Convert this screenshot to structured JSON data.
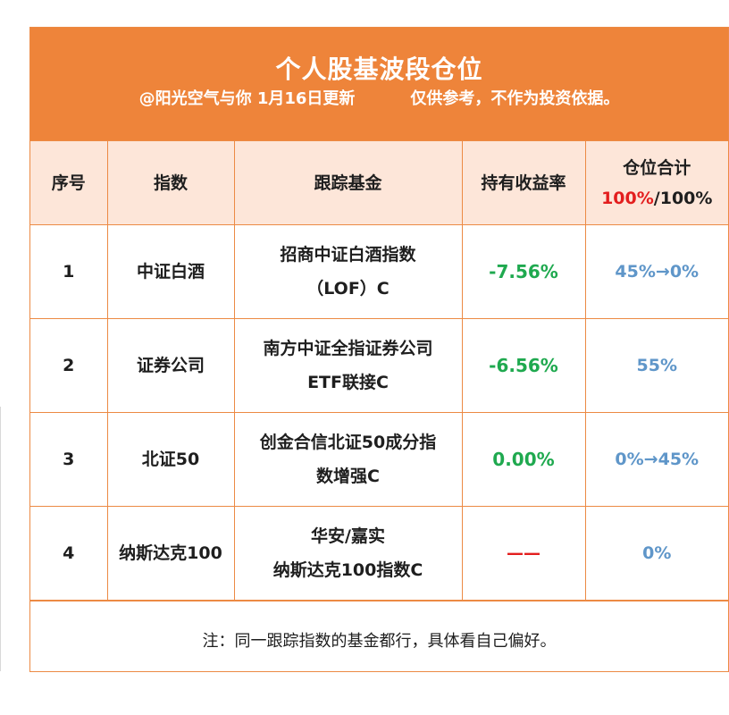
{
  "header": {
    "title": "个人股基波段仓位",
    "author_date": "@阳光空气与你 1月16日更新",
    "disclaimer": "仅供参考，不作为投资依据。"
  },
  "table": {
    "columns": {
      "no": "序号",
      "index": "指数",
      "fund": "跟踪基金",
      "return": "持有收益率",
      "position_label": "仓位合计",
      "position_current": "100%",
      "position_sep": "/",
      "position_max": "100%"
    },
    "rows": [
      {
        "no": "1",
        "index": "中证白酒",
        "fund_line1": "招商中证白酒指数",
        "fund_line2": "（LOF）C",
        "return": "-7.56%",
        "position": "45%→0%"
      },
      {
        "no": "2",
        "index": "证券公司",
        "fund_line1": "南方中证全指证券公司",
        "fund_line2": "ETF联接C",
        "return": "-6.56%",
        "position": "55%"
      },
      {
        "no": "3",
        "index": "北证50",
        "fund_line1": "创金合信北证50成分指",
        "fund_line2": "数增强C",
        "return": "0.00%",
        "position": "0%→45%"
      },
      {
        "no": "4",
        "index": "纳斯达克100",
        "fund_line1": "华安/嘉实",
        "fund_line2": "纳斯达克100指数C",
        "return": "——",
        "position": "0%"
      }
    ]
  },
  "note": "注：同一跟踪指数的基金都行，具体看自己偏好。",
  "colors": {
    "header_bg": "#ee843a",
    "table_header_bg": "#fde6d9",
    "border": "#ec8a44",
    "return_green": "#1fa94f",
    "position_blue": "#5f96c9",
    "highlight_red": "#e31e1e"
  }
}
